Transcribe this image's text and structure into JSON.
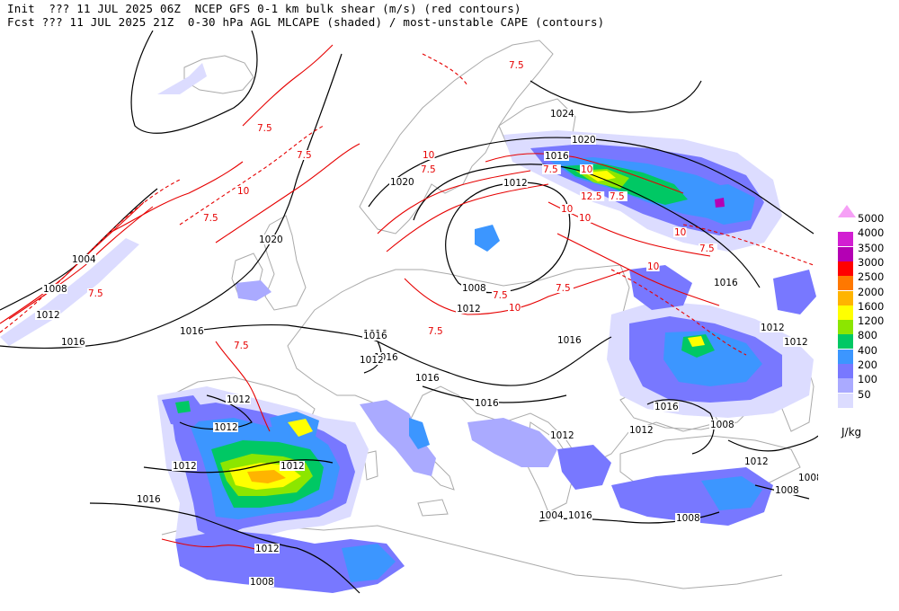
{
  "header": {
    "line1": "Init  ??? 11 JUL 2025 06Z  NCEP GFS 0-1 km bulk shear (m/s) (red contours)",
    "line2": "Fcst ??? 11 JUL 2025 21Z  0-30 hPa AGL MLCAPE (shaded) / most-unstable CAPE (contours)"
  },
  "legend": {
    "units": "J/kg",
    "levels": [
      {
        "label": "5000",
        "color": "#f6a0f6"
      },
      {
        "label": "4000",
        "color": "#d21ed2"
      },
      {
        "label": "3500",
        "color": "#b400b4"
      },
      {
        "label": "3000",
        "color": "#ff0000"
      },
      {
        "label": "2500",
        "color": "#ff7800"
      },
      {
        "label": "2000",
        "color": "#ffb400"
      },
      {
        "label": "1600",
        "color": "#ffff00"
      },
      {
        "label": "1200",
        "color": "#8ce600"
      },
      {
        "label": "800",
        "color": "#00c864"
      },
      {
        "label": "400",
        "color": "#3c96ff"
      },
      {
        "label": "200",
        "color": "#7878ff"
      },
      {
        "label": "100",
        "color": "#aaaaff"
      },
      {
        "label": "50",
        "color": "#dcdcff"
      }
    ]
  },
  "isobar_labels": [
    "1004",
    "1008",
    "1012",
    "1016",
    "1016",
    "1020",
    "1020",
    "1024",
    "1020",
    "1016",
    "1012",
    "1008",
    "1012",
    "1016",
    "1016",
    "1016",
    "1016",
    "1012",
    "1016",
    "1012",
    "1012",
    "1012",
    "1016",
    "1012",
    "1012",
    "1016",
    "1016",
    "1012",
    "1012",
    "1008",
    "1012",
    "1008",
    "1008",
    "1008",
    "1004",
    "1008",
    "1012",
    "1016",
    "1016",
    "1012"
  ],
  "shear_labels": [
    "7.5",
    "7.5",
    "7.5",
    "10",
    "7.5",
    "7.5",
    "10",
    "7.5",
    "10",
    "12.5",
    "7.5",
    "10",
    "10",
    "7.5",
    "10",
    "7.5",
    "10",
    "7.5",
    "10",
    "7.5",
    "7.5",
    "7.5"
  ],
  "colors": {
    "coast": "#aaaaaa",
    "isobar": "#000000",
    "shear": "#e60000"
  }
}
